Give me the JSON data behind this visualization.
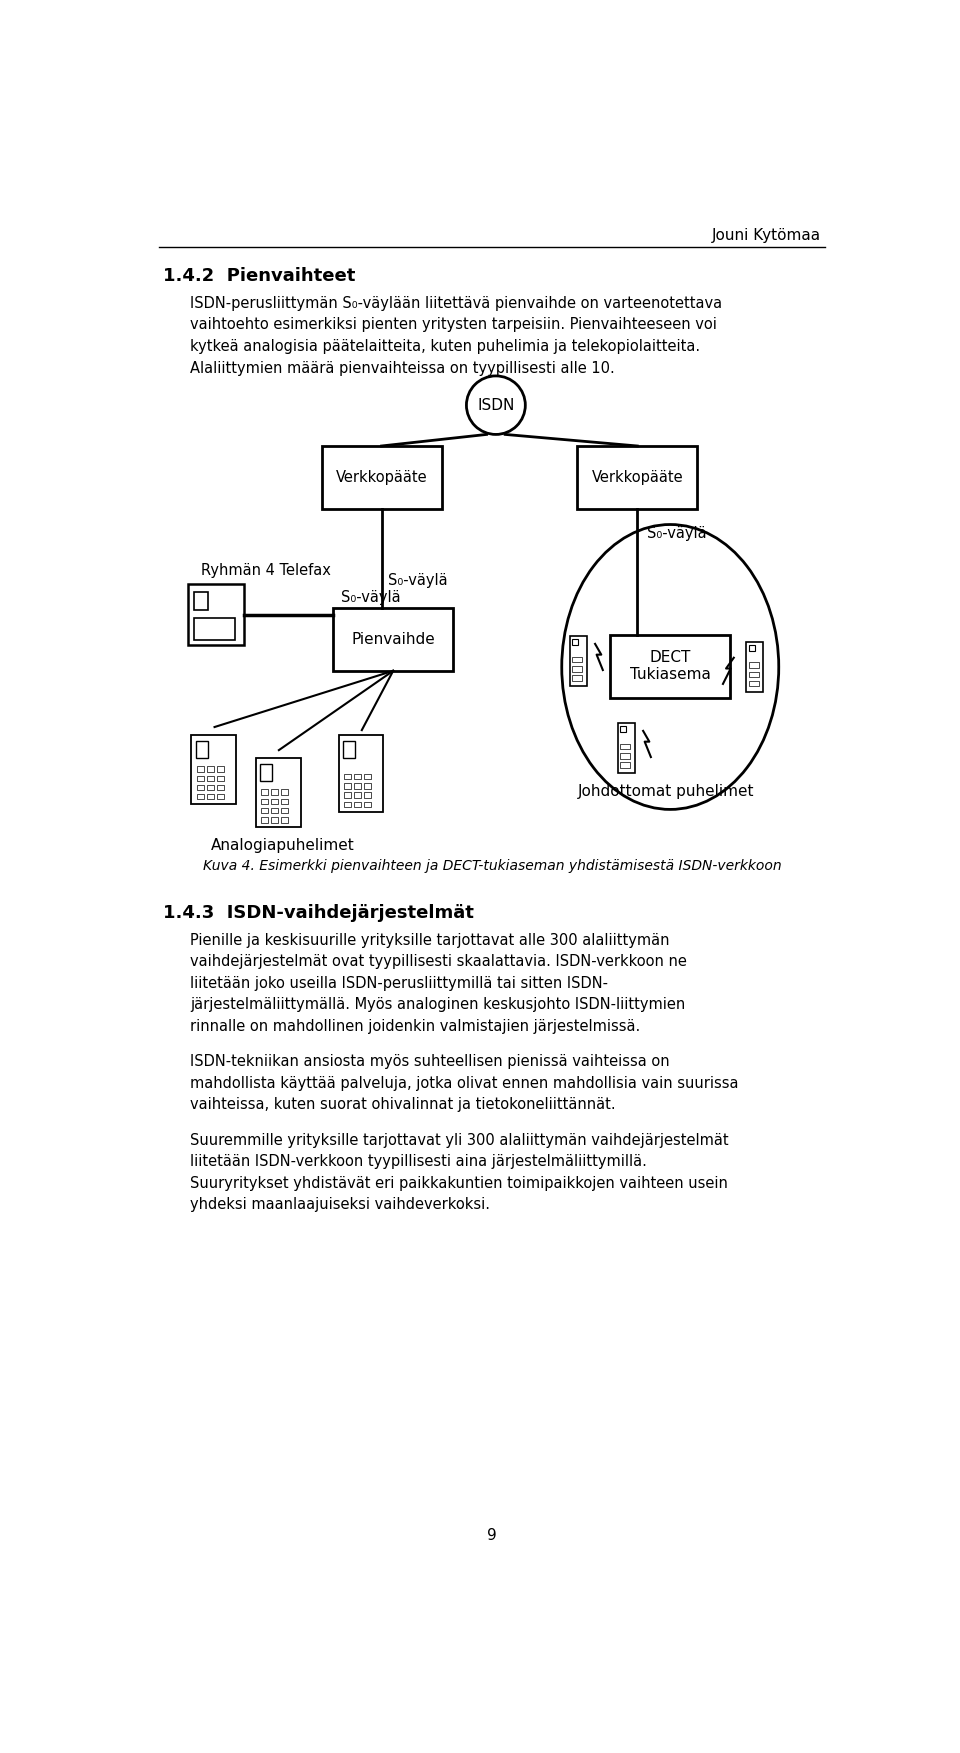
{
  "header_name": "Jouni Kytömaa",
  "section_title": "1.4.2  Pienvaihteet",
  "para1_line1": "ISDN-perusliittymän S₀-väylään liitettävä pienvaihde on varteenotettava",
  "para1_line2": "vaihtoehto esimerkiksi pienten yritysten tarpeisiin. Pienvaihteeseen voi",
  "para1_line3": "kytkeä analogisia päätelaitteita, kuten puhelimia ja telekopiolaitteita.",
  "para1_line4": "Alaliittymien määrä pienvaihteissa on tyypillisesti alle 10.",
  "caption": "Kuva 4. Esimerkki pienvaihteen ja DECT-tukiaseman yhdistämisestä ISDN-verkkoon",
  "section2_title": "1.4.3  ISDN-vaihdejärjestelmät",
  "para2_line1": "Pienille ja keskisuurille yrityksille tarjottavat alle 300 alaliittymän",
  "para2_line2": "vaihdejärjestelmät ovat tyypillisesti skaalattavia. ISDN-verkkoon ne",
  "para2_line3": "liitetään joko useilla ISDN-perusliittymillä tai sitten ISDN-",
  "para2_line4": "järjestelmäliittymällä. Myös analoginen keskusjohto ISDN-liittymien",
  "para2_line5": "rinnalle on mahdollinen joidenkin valmistajien järjestelmissä.",
  "para3_line1": "ISDN-tekniikan ansiosta myös suhteellisen pienissä vaihteissa on",
  "para3_line2": "mahdollista käyttää palveluja, jotka olivat ennen mahdollisia vain suurissa",
  "para3_line3": "vaihteissa, kuten suorat ohivalinnat ja tietokoneliittännät.",
  "para4_line1": "Suuremmille yrityksille tarjottavat yli 300 alaliittymän vaihdejärjestelmät",
  "para4_line2": "liitetään ISDN-verkkoon tyypillisesti aina järjestelmäliittymillä.",
  "para4_line3": "Suuryritykset yhdistävät eri paikkakuntien toimipaikkojen vaihteen usein",
  "para4_line4": "yhdeksi maanlaajuiseksi vaihdeverkoksi.",
  "page_number": "9",
  "bg_color": "#ffffff",
  "text_color": "#000000",
  "label_isdn": "ISDN",
  "label_verkko1": "Verkkopääte",
  "label_verkko2": "Verkkopääte",
  "label_s0_left": "S₀-väylä",
  "label_s0_right": "S₀-väylä",
  "label_pienvaihde": "Pienvaihde",
  "label_dect": "DECT\nTukiasema",
  "label_ryhmä": "Ryhmän 4 Telefax",
  "label_analogia": "Analogiapuhelimet",
  "label_johdottomat": "Johdottomat puhelimet"
}
